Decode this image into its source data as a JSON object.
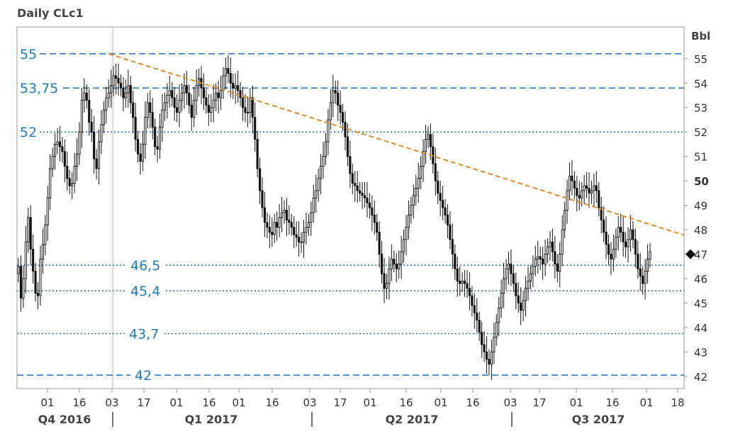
{
  "header": {
    "title": "Daily CLc1"
  },
  "colors": {
    "level_line": "#1f6fc2",
    "level_text": "#1a7bc9",
    "trendline": "#e08b2a",
    "candle": "#111111",
    "axis": "#999999"
  },
  "chart_data": {
    "type": "candlestick",
    "title": "Daily CLc1",
    "ylabel": "Bbl",
    "ylim": [
      41.5,
      56.3
    ],
    "y_ticks": [
      42,
      43,
      44,
      45,
      46,
      47,
      48,
      49,
      50,
      51,
      52,
      53,
      54,
      55
    ],
    "y_tick_bold": 50,
    "last_price_marker": 47,
    "x_ticks": [
      "01",
      "16",
      "03",
      "17",
      "01",
      "16",
      "01",
      "16",
      "03",
      "17",
      "01",
      "16",
      "01",
      "16",
      "03",
      "17",
      "01",
      "16",
      "01",
      "18"
    ],
    "quarters": [
      "Q4 2016",
      "Q1 2017",
      "Q2 2017",
      "Q3 2017"
    ],
    "levels": [
      {
        "label": "55",
        "value": 55.2,
        "style": "dashed"
      },
      {
        "label": "53,75",
        "value": 53.8,
        "style": "dashed"
      },
      {
        "label": "52",
        "value": 52.0,
        "style": "dotted"
      },
      {
        "label": "46,5",
        "value": 46.55,
        "style": "dotted"
      },
      {
        "label": "45,4",
        "value": 45.5,
        "style": "dotted"
      },
      {
        "label": "43,7",
        "value": 43.75,
        "style": "dotted"
      },
      {
        "label": "42",
        "value": 42.05,
        "style": "dashed"
      }
    ],
    "trendline": {
      "start": [
        37,
        55.2
      ],
      "end": [
        231,
        49.1
      ]
    },
    "closes": [
      46.5,
      45.2,
      46.0,
      47.5,
      48.5,
      47.2,
      46.3,
      45.4,
      45.3,
      46.8,
      47.4,
      48.2,
      49.3,
      50.5,
      51.0,
      51.5,
      51.6,
      51.4,
      51.2,
      50.6,
      50.1,
      49.8,
      49.9,
      50.6,
      51.1,
      52.0,
      53.3,
      53.6,
      53.3,
      52.4,
      52.0,
      50.9,
      50.5,
      51.6,
      52.3,
      52.9,
      53.4,
      53.6,
      53.9,
      54.3,
      54.2,
      54.0,
      53.8,
      53.4,
      53.6,
      53.9,
      53.2,
      52.6,
      51.7,
      51.1,
      50.8,
      51.5,
      52.6,
      53.2,
      52.8,
      52.2,
      51.4,
      51.3,
      52.2,
      52.9,
      53.2,
      53.5,
      53.7,
      53.4,
      53.0,
      52.8,
      53.3,
      53.6,
      53.9,
      53.6,
      53.1,
      52.6,
      53.3,
      53.9,
      54.2,
      53.8,
      53.4,
      53.1,
      52.8,
      53.0,
      53.3,
      53.6,
      53.4,
      53.7,
      54.3,
      54.6,
      54.4,
      54.0,
      53.8,
      53.9,
      53.7,
      53.4,
      53.0,
      52.8,
      52.8,
      53.4,
      52.6,
      51.7,
      50.5,
      49.6,
      48.9,
      48.3,
      48.1,
      47.9,
      47.8,
      48.3,
      48.1,
      48.5,
      48.7,
      48.8,
      48.4,
      48.3,
      48.1,
      47.8,
      47.7,
      47.5,
      47.5,
      47.9,
      48.1,
      48.3,
      48.7,
      49.3,
      49.6,
      50.1,
      50.6,
      51.0,
      51.6,
      52.5,
      53.2,
      53.7,
      53.6,
      53.1,
      52.8,
      52.4,
      51.8,
      51.0,
      50.3,
      49.9,
      49.8,
      49.6,
      49.5,
      49.4,
      49.3,
      49.1,
      48.9,
      48.6,
      48.3,
      47.9,
      47.0,
      46.2,
      45.6,
      45.8,
      46.4,
      46.8,
      46.6,
      46.4,
      46.6,
      47.1,
      47.6,
      48.1,
      48.6,
      49.0,
      49.4,
      49.7,
      50.1,
      50.6,
      51.2,
      51.7,
      51.9,
      51.4,
      50.7,
      50.0,
      49.5,
      49.2,
      48.9,
      48.6,
      48.2,
      47.6,
      47.0,
      46.4,
      45.9,
      45.8,
      45.9,
      45.8,
      45.6,
      45.3,
      44.9,
      44.6,
      44.3,
      43.8,
      43.3,
      43.0,
      42.7,
      42.5,
      43.0,
      43.6,
      44.2,
      44.8,
      45.4,
      46.0,
      46.4,
      46.6,
      46.2,
      45.8,
      45.3,
      45.0,
      44.7,
      45.1,
      45.6,
      45.9,
      46.2,
      46.5,
      46.8,
      46.9,
      46.8,
      46.6,
      47.0,
      47.3,
      47.5,
      47.1,
      46.6,
      46.3,
      47.0,
      48.0,
      48.8,
      49.6,
      50.2,
      50.0,
      49.7,
      49.4,
      49.3,
      49.6,
      49.8,
      49.7,
      49.5,
      49.6,
      49.8,
      49.6,
      48.9,
      48.4,
      47.9,
      47.4,
      47.0,
      46.8,
      47.2,
      47.7,
      48.1,
      47.9,
      47.5,
      47.3,
      47.6,
      48.0,
      47.6,
      47.0,
      46.4,
      46.1,
      45.8,
      46.3,
      46.8,
      47.1
    ]
  }
}
